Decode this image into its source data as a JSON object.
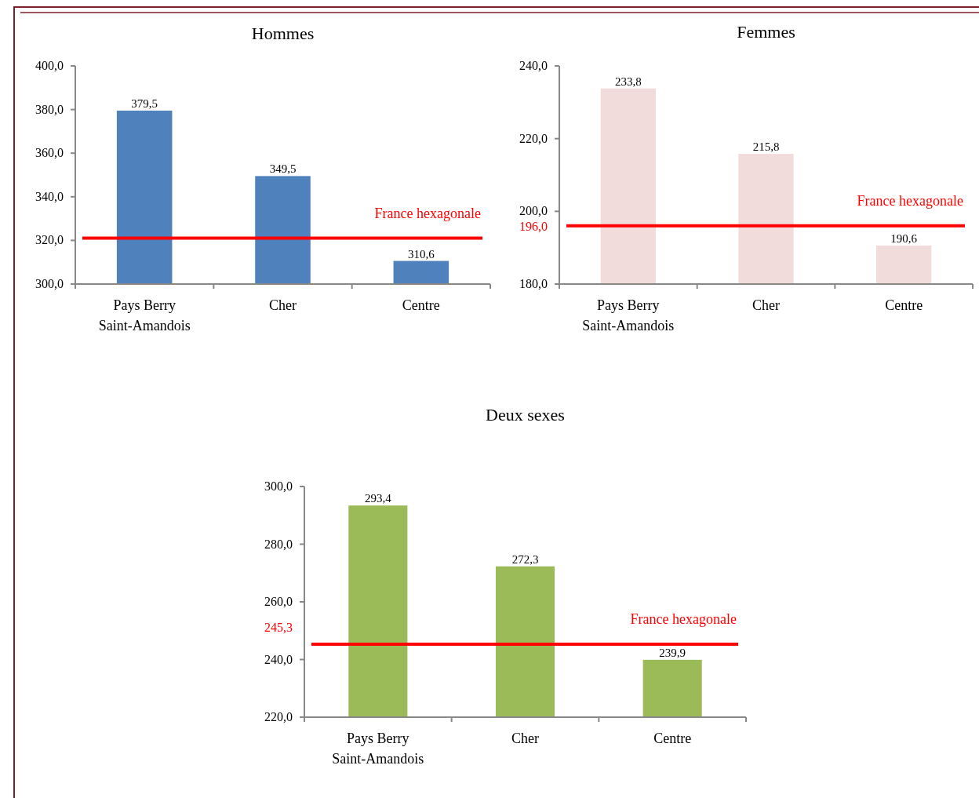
{
  "chart_data": [
    {
      "type": "bar",
      "title": "Hommes",
      "categories": [
        "Pays Berry\nSaint-Amandois",
        "Cher",
        "Centre"
      ],
      "values": [
        379.5,
        349.5,
        310.6
      ],
      "value_labels": [
        "379,5",
        "349,5",
        "310,6"
      ],
      "color": "#4f81bd",
      "ylim": [
        300,
        400
      ],
      "yticks": [
        {
          "value": 300,
          "label": "300,0"
        },
        {
          "value": 320,
          "label": "320,0"
        },
        {
          "value": 340,
          "label": "340,0"
        },
        {
          "value": 360,
          "label": "360,0"
        },
        {
          "value": 380,
          "label": "380,0"
        },
        {
          "value": 400,
          "label": "400,0"
        }
      ],
      "ref_lines": [
        {
          "axis": "y",
          "value": 321,
          "label": "France hexagonale",
          "color": "#ff0000"
        }
      ]
    },
    {
      "type": "bar",
      "title": "Femmes",
      "categories": [
        "Pays Berry\nSaint-Amandois",
        "Cher",
        "Centre"
      ],
      "values": [
        233.8,
        215.8,
        190.6
      ],
      "value_labels": [
        "233,8",
        "215,8",
        "190,6"
      ],
      "color": "#f2dcdb",
      "ylim": [
        180,
        240
      ],
      "yticks": [
        {
          "value": 180,
          "label": "180,0"
        },
        {
          "value": 200,
          "label": "200,0"
        },
        {
          "value": 220,
          "label": "220,0"
        },
        {
          "value": 240,
          "label": "240,0"
        }
      ],
      "ref_lines": [
        {
          "axis": "y",
          "value": 196,
          "label": "France hexagonale",
          "color": "#ff0000"
        }
      ],
      "annotations": [
        "196,0"
      ]
    },
    {
      "type": "bar",
      "title": "Deux sexes",
      "categories": [
        "Pays Berry\nSaint-Amandois",
        "Cher",
        "Centre"
      ],
      "values": [
        293.4,
        272.3,
        239.9
      ],
      "value_labels": [
        "293,4",
        "272,3",
        "239,9"
      ],
      "color": "#9bbb59",
      "ylim": [
        220,
        300
      ],
      "yticks": [
        {
          "value": 220,
          "label": "220,0"
        },
        {
          "value": 240,
          "label": "240,0"
        },
        {
          "value": 260,
          "label": "260,0"
        },
        {
          "value": 280,
          "label": "280,0"
        },
        {
          "value": 300,
          "label": "300,0"
        }
      ],
      "ref_lines": [
        {
          "axis": "y",
          "value": 245.3,
          "label": "France hexagonale",
          "color": "#ff0000"
        }
      ],
      "annotations": [
        "245,3"
      ]
    }
  ]
}
